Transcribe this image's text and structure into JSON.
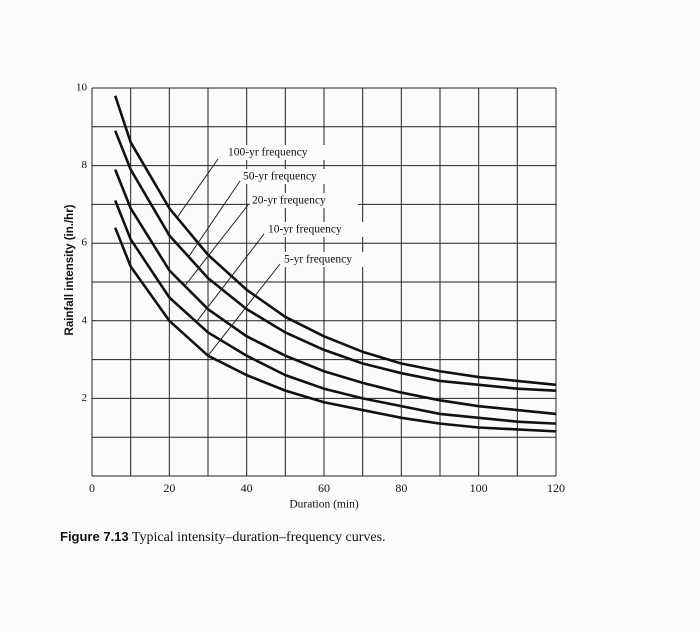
{
  "chart_data": {
    "type": "line",
    "xlabel": "Duration (min)",
    "ylabel": "Rainfall intensity (in./hr)",
    "caption_label": "Figure 7.13",
    "caption": "Typical intensity–duration–frequency curves.",
    "x": [
      6,
      10,
      20,
      30,
      40,
      50,
      60,
      70,
      80,
      90,
      100,
      110,
      120
    ],
    "series": [
      {
        "name": "100-yr frequency",
        "color": "#111111",
        "values": [
          9.8,
          8.6,
          6.9,
          5.7,
          4.8,
          4.1,
          3.6,
          3.2,
          2.9,
          2.7,
          2.55,
          2.45,
          2.35
        ]
      },
      {
        "name": "50-yr frequency",
        "color": "#111111",
        "values": [
          8.9,
          7.9,
          6.2,
          5.1,
          4.3,
          3.7,
          3.25,
          2.9,
          2.65,
          2.45,
          2.35,
          2.25,
          2.2
        ]
      },
      {
        "name": "20-yr frequency",
        "color": "#111111",
        "values": [
          7.9,
          6.9,
          5.3,
          4.3,
          3.6,
          3.1,
          2.7,
          2.4,
          2.15,
          1.95,
          1.8,
          1.7,
          1.6
        ]
      },
      {
        "name": "10-yr frequency",
        "color": "#111111",
        "values": [
          7.1,
          6.1,
          4.6,
          3.7,
          3.1,
          2.6,
          2.25,
          2.0,
          1.8,
          1.6,
          1.5,
          1.4,
          1.35
        ]
      },
      {
        "name": "5-yr frequency",
        "color": "#111111",
        "values": [
          6.4,
          5.4,
          4.0,
          3.1,
          2.6,
          2.2,
          1.9,
          1.7,
          1.5,
          1.35,
          1.25,
          1.2,
          1.15
        ]
      }
    ],
    "xlim": [
      0,
      120
    ],
    "ylim": [
      0,
      10
    ],
    "xticks": [
      0,
      20,
      40,
      60,
      80,
      100,
      120
    ],
    "yticks": [
      2,
      4,
      6,
      8,
      10
    ],
    "xgrid": [
      10,
      30,
      50,
      70,
      90,
      110
    ],
    "ygrid": [
      0,
      1,
      3,
      5,
      7,
      9
    ],
    "grid": true
  }
}
